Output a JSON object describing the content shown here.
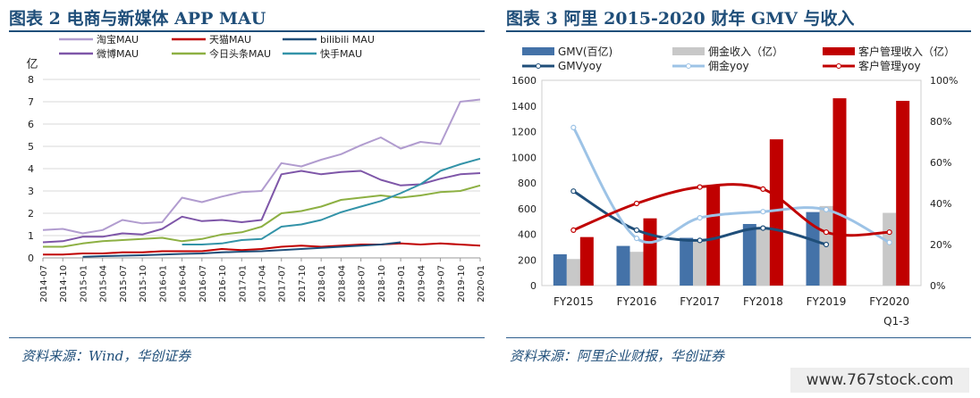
{
  "figure2": {
    "title": "图表 2   电商与新媒体 APP MAU",
    "source": "资料来源：Wind，华创证券",
    "colors": {
      "淘宝MAU": "#b19ccf",
      "天猫MAU": "#c00000",
      "bilibili MAU": "#1f4e79",
      "微博MAU": "#7e56a8",
      "今日头条MAU": "#8db043",
      "快手MAU": "#3393a8"
    }
  },
  "figure3": {
    "title": "图表 3   阿里 2015-2020 财年 GMV 与收入",
    "source": "资料来源：阿里企业财报，华创证券",
    "colors": {
      "GMV(百亿)": "#4472a8",
      "佣金收入（亿）": "#c8c8c8",
      "客户管理收入（亿）": "#c00000",
      "GMVyoy": "#1f4e79",
      "佣金yoy": "#9dc3e6",
      "客户管理yoy": "#c00000"
    }
  },
  "watermark": "www.767stock.com",
  "chart_data": [
    {
      "type": "line",
      "title": "图表 2   电商与新媒体 APP MAU",
      "ylabel": "亿",
      "ylim": [
        0,
        8
      ],
      "yticks": [
        0,
        1,
        2,
        3,
        4,
        5,
        6,
        7,
        8
      ],
      "xticks": [
        "2014-07",
        "2014-10",
        "2015-01",
        "2015-04",
        "2015-07",
        "2015-10",
        "2016-01",
        "2016-04",
        "2016-07",
        "2016-10",
        "2017-01",
        "2017-04",
        "2017-07",
        "2017-10",
        "2018-01",
        "2018-04",
        "2018-07",
        "2018-10",
        "2019-01",
        "2019-04",
        "2019-07",
        "2019-10",
        "2020-01"
      ],
      "grid": true,
      "legend_position": "top",
      "series": [
        {
          "name": "淘宝MAU",
          "x_index": [
            0,
            1,
            2,
            3,
            4,
            5,
            6,
            7,
            8,
            9,
            10,
            11,
            12,
            13,
            14,
            15,
            16,
            17,
            18,
            19,
            20,
            21,
            22
          ],
          "values": [
            1.25,
            1.3,
            1.1,
            1.25,
            1.7,
            1.55,
            1.6,
            2.7,
            2.5,
            2.75,
            2.95,
            3.0,
            4.25,
            4.1,
            4.4,
            4.65,
            5.05,
            5.4,
            4.9,
            5.2,
            5.1,
            7.0,
            7.1
          ]
        },
        {
          "name": "天猫MAU",
          "x_index": [
            0,
            1,
            2,
            3,
            4,
            5,
            6,
            7,
            8,
            9,
            10,
            11,
            12,
            13,
            14,
            15,
            16,
            17,
            18,
            19,
            20,
            21,
            22
          ],
          "values": [
            0.15,
            0.15,
            0.2,
            0.2,
            0.25,
            0.25,
            0.3,
            0.3,
            0.3,
            0.4,
            0.35,
            0.4,
            0.5,
            0.55,
            0.5,
            0.55,
            0.6,
            0.6,
            0.65,
            0.6,
            0.65,
            0.6,
            0.55
          ]
        },
        {
          "name": "bilibili MAU",
          "x_index": [
            2,
            3,
            4,
            5,
            6,
            7,
            8,
            9,
            10,
            11,
            12,
            13,
            14,
            15,
            16,
            17,
            18
          ],
          "values": [
            0.05,
            0.08,
            0.1,
            0.12,
            0.15,
            0.18,
            0.2,
            0.25,
            0.28,
            0.3,
            0.35,
            0.4,
            0.45,
            0.5,
            0.55,
            0.6,
            0.7
          ]
        },
        {
          "name": "微博MAU",
          "x_index": [
            0,
            1,
            2,
            3,
            4,
            5,
            6,
            7,
            8,
            9,
            10,
            11,
            12,
            13,
            14,
            15,
            16,
            17,
            18,
            19,
            20,
            21,
            22
          ],
          "values": [
            0.7,
            0.75,
            0.95,
            0.95,
            1.1,
            1.05,
            1.3,
            1.85,
            1.65,
            1.7,
            1.6,
            1.7,
            3.75,
            3.9,
            3.75,
            3.85,
            3.9,
            3.5,
            3.25,
            3.3,
            3.55,
            3.75,
            3.8
          ]
        },
        {
          "name": "今日头条MAU",
          "x_index": [
            0,
            1,
            2,
            3,
            4,
            5,
            6,
            7,
            8,
            9,
            10,
            11,
            12,
            13,
            14,
            15,
            16,
            17,
            18,
            19,
            20,
            21,
            22
          ],
          "values": [
            0.5,
            0.5,
            0.65,
            0.75,
            0.8,
            0.85,
            0.9,
            0.75,
            0.85,
            1.05,
            1.15,
            1.4,
            2.0,
            2.1,
            2.3,
            2.6,
            2.7,
            2.8,
            2.7,
            2.8,
            2.95,
            3.0,
            3.25
          ]
        },
        {
          "name": "快手MAU",
          "x_index": [
            7,
            8,
            9,
            10,
            11,
            12,
            13,
            14,
            15,
            16,
            17,
            18,
            19,
            20,
            21,
            22
          ],
          "values": [
            0.6,
            0.6,
            0.65,
            0.8,
            0.85,
            1.4,
            1.5,
            1.7,
            2.05,
            2.3,
            2.55,
            2.9,
            3.3,
            3.9,
            4.2,
            4.45
          ]
        }
      ]
    },
    {
      "type": "bar",
      "title": "图表 3   阿里 2015-2020 财年 GMV 与收入",
      "categories": [
        "FY2015",
        "FY2016",
        "FY2017",
        "FY2018",
        "FY2019",
        "FY2020"
      ],
      "category_sublabels": [
        "",
        "",
        "",
        "",
        "",
        "Q1-3"
      ],
      "ylim": [
        0,
        1600
      ],
      "yticks": [
        0,
        200,
        400,
        600,
        800,
        1000,
        1200,
        1400,
        1600
      ],
      "y2lim": [
        0,
        1.0
      ],
      "y2ticks": [
        "0%",
        "20%",
        "40%",
        "60%",
        "80%",
        "100%"
      ],
      "legend_position": "top",
      "series": [
        {
          "name": "GMV(百亿)",
          "type": "bar",
          "axis": "left",
          "values": [
            244,
            309,
            372,
            480,
            573,
            null
          ]
        },
        {
          "name": "佣金收入（亿）",
          "type": "bar",
          "axis": "left",
          "values": [
            207,
            263,
            344,
            441,
            620,
            567
          ]
        },
        {
          "name": "客户管理收入（亿）",
          "type": "bar",
          "axis": "left",
          "values": [
            378,
            524,
            778,
            1140,
            1460,
            1440
          ]
        },
        {
          "name": "GMVyoy",
          "type": "line",
          "axis": "right",
          "values": [
            0.46,
            0.27,
            0.22,
            0.28,
            0.2,
            null
          ]
        },
        {
          "name": "佣金yoy",
          "type": "line",
          "axis": "right",
          "values": [
            0.77,
            0.23,
            0.33,
            0.36,
            0.37,
            0.21
          ]
        },
        {
          "name": "客户管理yoy",
          "type": "line",
          "axis": "right",
          "values": [
            0.27,
            0.4,
            0.48,
            0.47,
            0.26,
            0.26
          ]
        }
      ]
    }
  ]
}
